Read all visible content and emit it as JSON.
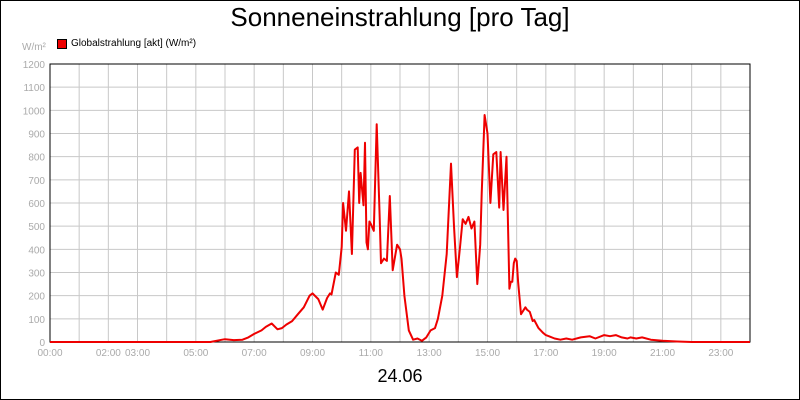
{
  "chart_data": {
    "type": "line",
    "title": "Sonneneinstrahlung [pro Tag]",
    "ylabel": "W/m²",
    "date_label": "24.06",
    "ylim": [
      0,
      1200
    ],
    "yticks": [
      0,
      100,
      200,
      300,
      400,
      500,
      600,
      700,
      800,
      900,
      1000,
      1100,
      1200
    ],
    "xlim": [
      0,
      24
    ],
    "xticks": [
      {
        "x": 0,
        "label": "00:00"
      },
      {
        "x": 2,
        "label": "02:00"
      },
      {
        "x": 3,
        "label": "03:00"
      },
      {
        "x": 5,
        "label": "05:00"
      },
      {
        "x": 7,
        "label": "07:00"
      },
      {
        "x": 9,
        "label": "09:00"
      },
      {
        "x": 11,
        "label": "11:00"
      },
      {
        "x": 13,
        "label": "13:00"
      },
      {
        "x": 15,
        "label": "15:00"
      },
      {
        "x": 17,
        "label": "17:00"
      },
      {
        "x": 19,
        "label": "19:00"
      },
      {
        "x": 21,
        "label": "21:00"
      },
      {
        "x": 23,
        "label": "23:00"
      }
    ],
    "grid": true,
    "legend_position": "top-left",
    "series": [
      {
        "name": "Globalstrahlung [akt] (W/m²)",
        "color": "#ee0000",
        "x": [
          0,
          5.5,
          5.9,
          6.0,
          6.3,
          6.6,
          6.8,
          7.0,
          7.25,
          7.4,
          7.6,
          7.8,
          7.95,
          8.1,
          8.3,
          8.5,
          8.7,
          8.9,
          9.0,
          9.2,
          9.35,
          9.5,
          9.6,
          9.65,
          9.8,
          9.9,
          10.0,
          10.05,
          10.15,
          10.25,
          10.35,
          10.45,
          10.55,
          10.6,
          10.65,
          10.75,
          10.8,
          10.85,
          10.9,
          10.95,
          11.0,
          11.1,
          11.2,
          11.3,
          11.35,
          11.45,
          11.55,
          11.65,
          11.75,
          11.9,
          12.0,
          12.05,
          12.15,
          12.3,
          12.45,
          12.6,
          12.75,
          12.9,
          13.05,
          13.2,
          13.3,
          13.45,
          13.6,
          13.75,
          13.85,
          13.95,
          14.05,
          14.15,
          14.25,
          14.35,
          14.45,
          14.55,
          14.65,
          14.75,
          14.8,
          14.9,
          15.0,
          15.1,
          15.2,
          15.3,
          15.4,
          15.45,
          15.55,
          15.65,
          15.75,
          15.8,
          15.85,
          15.9,
          15.95,
          16.0,
          16.05,
          16.15,
          16.3,
          16.35,
          16.45,
          16.55,
          16.6,
          16.75,
          16.9,
          17.0,
          17.1,
          17.3,
          17.5,
          17.7,
          17.9,
          18.2,
          18.5,
          18.7,
          19.0,
          19.2,
          19.4,
          19.6,
          19.8,
          19.9,
          20.1,
          20.3,
          20.6,
          21.0,
          21.5,
          22.0,
          24.0
        ],
        "y": [
          0,
          0,
          10,
          12,
          8,
          10,
          20,
          35,
          50,
          65,
          80,
          55,
          60,
          75,
          90,
          120,
          150,
          200,
          210,
          185,
          140,
          190,
          210,
          205,
          300,
          290,
          410,
          600,
          480,
          650,
          380,
          830,
          840,
          600,
          730,
          590,
          860,
          430,
          400,
          520,
          510,
          480,
          940,
          550,
          340,
          360,
          350,
          630,
          310,
          420,
          400,
          360,
          200,
          50,
          10,
          15,
          5,
          20,
          50,
          60,
          100,
          200,
          380,
          770,
          500,
          280,
          400,
          530,
          510,
          540,
          490,
          520,
          250,
          420,
          640,
          980,
          900,
          600,
          810,
          820,
          580,
          820,
          570,
          800,
          230,
          260,
          260,
          340,
          360,
          350,
          260,
          120,
          150,
          140,
          130,
          90,
          95,
          60,
          40,
          30,
          25,
          15,
          10,
          15,
          10,
          20,
          25,
          15,
          30,
          25,
          30,
          20,
          15,
          20,
          15,
          20,
          10,
          5,
          2,
          0,
          0
        ]
      }
    ]
  }
}
